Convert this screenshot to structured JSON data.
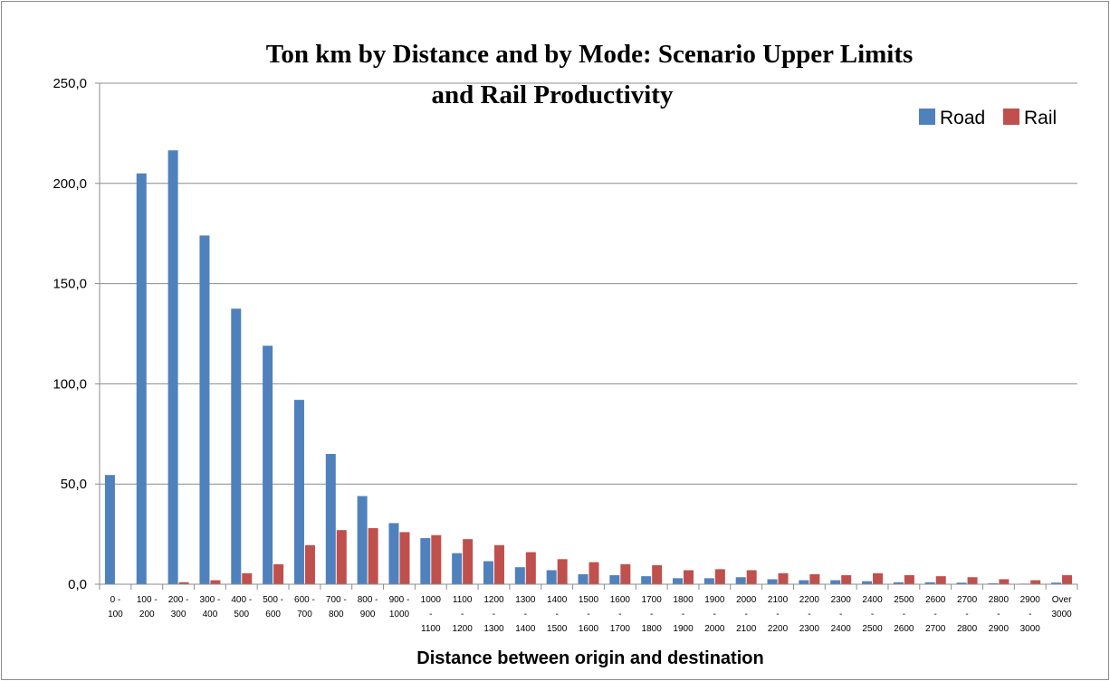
{
  "chart_data": {
    "type": "bar",
    "title_lines": [
      "Ton km by Distance and by Mode: Scenario Upper Limits",
      "and Rail Productivity"
    ],
    "xlabel": "Distance between origin and destination",
    "ylabel": "",
    "ylim": [
      0,
      250
    ],
    "yticks": [
      "0,0",
      "50,0",
      "100,0",
      "150,0",
      "200,0",
      "250,0"
    ],
    "grid": true,
    "legend_position": "top-right",
    "categories": [
      [
        "0 -",
        "100"
      ],
      [
        "100 -",
        "200"
      ],
      [
        "200 -",
        "300"
      ],
      [
        "300 -",
        "400"
      ],
      [
        "400 -",
        "500"
      ],
      [
        "500 -",
        "600"
      ],
      [
        "600 -",
        "700"
      ],
      [
        "700 -",
        "800"
      ],
      [
        "800 -",
        "900"
      ],
      [
        "900 -",
        "1000"
      ],
      [
        "1000",
        "-",
        "1100"
      ],
      [
        "1100",
        "-",
        "1200"
      ],
      [
        "1200",
        "-",
        "1300"
      ],
      [
        "1300",
        "-",
        "1400"
      ],
      [
        "1400",
        "-",
        "1500"
      ],
      [
        "1500",
        "-",
        "1600"
      ],
      [
        "1600",
        "-",
        "1700"
      ],
      [
        "1700",
        "-",
        "1800"
      ],
      [
        "1800",
        "-",
        "1900"
      ],
      [
        "1900",
        "-",
        "2000"
      ],
      [
        "2000",
        "-",
        "2100"
      ],
      [
        "2100",
        "-",
        "2200"
      ],
      [
        "2200",
        "-",
        "2300"
      ],
      [
        "2300",
        "-",
        "2400"
      ],
      [
        "2400",
        "-",
        "2500"
      ],
      [
        "2500",
        "-",
        "2600"
      ],
      [
        "2600",
        "-",
        "2700"
      ],
      [
        "2700",
        "-",
        "2800"
      ],
      [
        "2800",
        "-",
        "2900"
      ],
      [
        "2900",
        "-",
        "3000"
      ],
      [
        "Over",
        "3000"
      ]
    ],
    "series": [
      {
        "name": "Road",
        "color": "#4f81bd",
        "values": [
          54.5,
          205,
          216.5,
          174,
          137.5,
          119,
          92,
          65,
          44,
          30.5,
          23,
          15.5,
          11.5,
          8.5,
          7,
          5,
          4.5,
          4,
          3,
          3,
          3.5,
          2.5,
          2,
          2,
          1.5,
          1,
          1,
          0.8,
          0.5,
          0.3,
          0.8
        ]
      },
      {
        "name": "Rail",
        "color": "#c0504d",
        "values": [
          0,
          0,
          1,
          2,
          5.5,
          10,
          19.5,
          27,
          28,
          26,
          24.5,
          22.5,
          19.5,
          16,
          12.5,
          11,
          10,
          9.5,
          7,
          7.5,
          7,
          5.5,
          5,
          4.5,
          5.5,
          4.5,
          4,
          3.5,
          2.5,
          2,
          4.5
        ]
      }
    ]
  }
}
